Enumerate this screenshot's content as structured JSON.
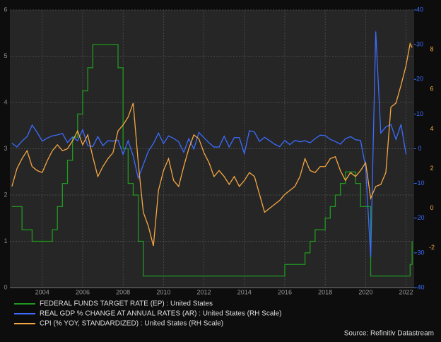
{
  "chart_data": {
    "type": "line",
    "x": [
      2002.5,
      2002.75,
      2003,
      2003.25,
      2003.5,
      2003.75,
      2004,
      2004.25,
      2004.5,
      2004.75,
      2005,
      2005.25,
      2005.5,
      2005.75,
      2006,
      2006.25,
      2006.5,
      2006.75,
      2007,
      2007.25,
      2007.5,
      2007.75,
      2008,
      2008.25,
      2008.5,
      2008.75,
      2009,
      2009.25,
      2009.5,
      2009.75,
      2010,
      2010.25,
      2010.5,
      2010.75,
      2011,
      2011.25,
      2011.5,
      2011.75,
      2012,
      2012.25,
      2012.5,
      2012.75,
      2013,
      2013.25,
      2013.5,
      2013.75,
      2014,
      2014.25,
      2014.5,
      2014.75,
      2015,
      2015.25,
      2015.5,
      2015.75,
      2016,
      2016.25,
      2016.5,
      2016.75,
      2017,
      2017.25,
      2017.5,
      2017.75,
      2018,
      2018.25,
      2018.5,
      2018.75,
      2019,
      2019.25,
      2019.5,
      2019.75,
      2020,
      2020.25,
      2020.5,
      2020.75,
      2021,
      2021.25,
      2021.5,
      2021.75,
      2022,
      2022.2,
      2022.3
    ],
    "xlim": [
      2002.4,
      2022.4
    ],
    "xticks": [
      2004,
      2006,
      2008,
      2010,
      2012,
      2014,
      2016,
      2018,
      2020,
      2022
    ],
    "ylim": [
      0,
      6
    ],
    "yticks": [
      0,
      1,
      2,
      3,
      4,
      5,
      6
    ],
    "y2lim": [
      -40,
      40
    ],
    "y2ticks": [
      -40,
      -30,
      -20,
      -10,
      0,
      10,
      20,
      30,
      40
    ],
    "y3lim": [
      -4,
      10
    ],
    "y3ticks": [
      -2,
      0,
      2,
      4,
      6,
      8
    ],
    "grid": true,
    "series": [
      {
        "name": "FEDERAL FUNDS TARGET RATE (EP) : United States",
        "color": "#1f9a1f",
        "axis": "y",
        "step": true,
        "values": [
          1.75,
          1.75,
          1.25,
          1.25,
          1,
          1,
          1,
          1,
          1.25,
          1.75,
          2.25,
          2.75,
          3.25,
          3.75,
          4.25,
          4.75,
          5.25,
          5.25,
          5.25,
          5.25,
          5.25,
          4.75,
          3,
          2.25,
          2,
          1,
          0.25,
          0.25,
          0.25,
          0.25,
          0.25,
          0.25,
          0.25,
          0.25,
          0.25,
          0.25,
          0.25,
          0.25,
          0.25,
          0.25,
          0.25,
          0.25,
          0.25,
          0.25,
          0.25,
          0.25,
          0.25,
          0.25,
          0.25,
          0.25,
          0.25,
          0.25,
          0.25,
          0.25,
          0.5,
          0.5,
          0.5,
          0.5,
          0.75,
          1,
          1.25,
          1.25,
          1.5,
          1.75,
          2,
          2.25,
          2.5,
          2.5,
          2.25,
          1.75,
          1.75,
          0.25,
          0.25,
          0.25,
          0.25,
          0.25,
          0.25,
          0.25,
          0.25,
          0.5,
          1
        ]
      },
      {
        "name": "REAL GDP % CHANGE AT ANNUAL RATES (AR) : United States (RH Scale)",
        "color": "#3b6cff",
        "axis": "y2",
        "values": [
          1.6,
          0.5,
          2.2,
          3.5,
          6.8,
          4.7,
          2.2,
          3.1,
          3.7,
          4,
          4.4,
          1.8,
          3.4,
          2.3,
          5.5,
          0.9,
          0.6,
          3.5,
          0.9,
          2.3,
          2.2,
          2.5,
          -1.6,
          2.3,
          -2.1,
          -8.5,
          -4.6,
          -0.7,
          1.5,
          4.5,
          1.5,
          3.7,
          3,
          2,
          -1,
          2.9,
          -0.1,
          4.7,
          3.2,
          1.7,
          0.5,
          0.5,
          3.6,
          0.5,
          3.2,
          3.2,
          -1.4,
          5.2,
          4.8,
          2.1,
          3.3,
          2.3,
          1.3,
          0.6,
          2.4,
          1.2,
          2.4,
          2,
          2.3,
          1.7,
          2.9,
          3.9,
          3.8,
          2.7,
          2.1,
          1.3,
          2.9,
          3.5,
          2.6,
          2.4,
          -5.3,
          -31.2,
          33.8,
          4.5,
          6.3,
          7,
          2.7,
          7,
          -1.6,
          null,
          null
        ]
      },
      {
        "name": "CPI (% YOY, STANDARDIZED) : United States (RH Scale)",
        "color": "#f5a742",
        "axis": "y3",
        "values": [
          1.1,
          2,
          2.5,
          2.9,
          2.1,
          1.9,
          1.8,
          2.4,
          2.9,
          3.2,
          2.9,
          3,
          3.4,
          3.9,
          3.2,
          3.7,
          2.6,
          1.6,
          2.1,
          2.5,
          2.8,
          3.9,
          4.2,
          4.6,
          5.3,
          2.3,
          -0.2,
          -0.9,
          -1.9,
          0.9,
          1.9,
          2.5,
          1.4,
          1.1,
          2.1,
          3,
          3.7,
          3.5,
          2.8,
          2.3,
          1.6,
          1.9,
          1.6,
          1.2,
          1.6,
          1.1,
          1.4,
          1.8,
          1.6,
          0.7,
          -0.2,
          0,
          0.2,
          0.4,
          0.7,
          0.9,
          1.1,
          1.6,
          2.5,
          1.9,
          1.8,
          2.1,
          2.1,
          2.5,
          2.6,
          1.9,
          1.4,
          1.8,
          1.6,
          1.9,
          2.3,
          0.5,
          1.1,
          1.2,
          1.8,
          5.1,
          5.3,
          6.2,
          7.2,
          8.3,
          8.1
        ]
      }
    ],
    "source": "Source: Refinitiv Datastream"
  }
}
